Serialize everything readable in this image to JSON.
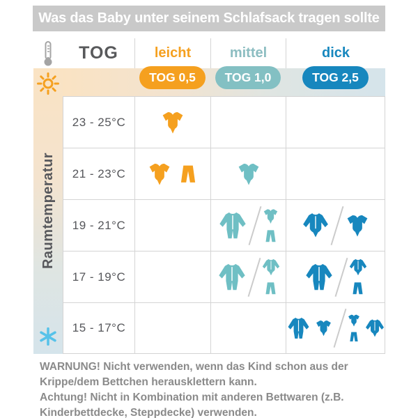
{
  "title": "Was das Baby unter seinem Schlafsack tragen sollte",
  "header": {
    "tog_label": "TOG",
    "columns": [
      {
        "id": "leicht",
        "label": "leicht",
        "badge": "TOG 0,5"
      },
      {
        "id": "mittel",
        "label": "mittel",
        "badge": "TOG 1,0"
      },
      {
        "id": "dick",
        "label": "dick",
        "badge": "TOG 2,5"
      }
    ]
  },
  "axis": {
    "label": "Raumtemperatur",
    "warm_icon": "sun-icon",
    "cold_icon": "snowflake-icon"
  },
  "rows": [
    {
      "temp": "23 - 25°C",
      "cells": {
        "leicht": [
          [
            "bodysuit-short"
          ]
        ],
        "mittel": [],
        "dick": []
      }
    },
    {
      "temp": "21 - 23°C",
      "cells": {
        "leicht": [
          [
            "bodysuit-short",
            "pants"
          ]
        ],
        "mittel": [
          [
            "bodysuit-short"
          ]
        ],
        "dick": []
      }
    },
    {
      "temp": "19 - 21°C",
      "cells": {
        "leicht": [],
        "mittel": [
          [
            "sleepsuit"
          ],
          [
            [
              "bodysuit-short",
              "pants"
            ]
          ]
        ],
        "dick": [
          [
            "longsleeve-top"
          ],
          [
            "bodysuit-short"
          ]
        ]
      }
    },
    {
      "temp": "17 - 19°C",
      "cells": {
        "leicht": [],
        "mittel": [
          [
            "sleepsuit"
          ],
          [
            [
              "longsleeve-top",
              "pants"
            ]
          ]
        ],
        "dick": [
          [
            "sleepsuit"
          ],
          [
            [
              "longsleeve-top",
              "pants"
            ]
          ]
        ]
      }
    },
    {
      "temp": "15 - 17°C",
      "cells": {
        "leicht": [],
        "mittel": [],
        "dick": [
          [
            "sleepsuit",
            "bodysuit-short"
          ],
          [
            [
              "bodysuit-short",
              "pants"
            ],
            "longsleeve-top"
          ]
        ]
      }
    }
  ],
  "footer": {
    "warning_1": "WARNUNG! Nicht verwenden, wenn das Kind schon aus der Krippe/dem Bettchen herausklettern kann.",
    "warning_2": "Achtung! Nicht in Kombination mit anderen Bettwaren (z.B. Kinderbettdecke, Steppdecke) verwenden."
  },
  "colors": {
    "leicht": "#F5A01F",
    "mittel": "#6FBFC4",
    "mittel_badge": "#83C0C3",
    "dick": "#1787BE",
    "title_bar": "#C9C9C9",
    "grid_line": "#D4D4D4",
    "text_gray": "#58595B",
    "footer_gray": "#8A8A8A",
    "band_warm": "#FAE3C3",
    "band_cold": "#D5E4EB",
    "sun": "#F5A01F",
    "snowflake": "#56C2E9"
  },
  "chart_data": {
    "type": "table",
    "title": "Was das Baby unter seinem Schlafsack tragen sollte",
    "row_axis_label": "Raumtemperatur",
    "columns": [
      "leicht (TOG 0,5)",
      "mittel (TOG 1,0)",
      "dick (TOG 2,5)"
    ],
    "rows": [
      "23 - 25°C",
      "21 - 23°C",
      "19 - 21°C",
      "17 - 19°C",
      "15 - 17°C"
    ],
    "cells": [
      [
        "bodysuit-short",
        "",
        ""
      ],
      [
        "bodysuit-short + pants",
        "bodysuit-short",
        ""
      ],
      [
        "",
        "sleepsuit / bodysuit-short + pants",
        "longsleeve-top / bodysuit-short"
      ],
      [
        "",
        "sleepsuit / longsleeve-top + pants",
        "sleepsuit / longsleeve-top + pants"
      ],
      [
        "",
        "",
        "sleepsuit + bodysuit-short / bodysuit-short + pants + longsleeve-top"
      ]
    ]
  }
}
